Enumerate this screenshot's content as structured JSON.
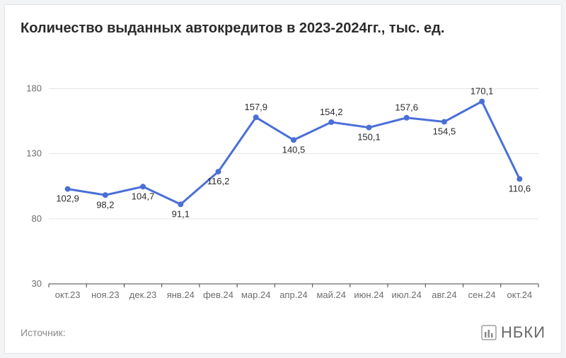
{
  "title": "Количество выданных автокредитов в 2023-2024гг., тыс. ед.",
  "chart": {
    "type": "line",
    "categories": [
      "окт.23",
      "ноя.23",
      "дек.23",
      "янв.24",
      "фев.24",
      "мар.24",
      "апр.24",
      "май.24",
      "июн.24",
      "июл.24",
      "авг.24",
      "сен.24",
      "окт.24"
    ],
    "values": [
      102.9,
      98.2,
      104.7,
      91.1,
      116.2,
      157.9,
      140.5,
      154.2,
      150.1,
      157.6,
      154.5,
      170.1,
      110.6
    ],
    "value_labels": [
      "102,9",
      "98,2",
      "104,7",
      "91,1",
      "116,2",
      "157,9",
      "140,5",
      "154,2",
      "150,1",
      "157,6",
      "154,5",
      "170,1",
      "110,6"
    ],
    "label_positions": [
      "below",
      "below",
      "below",
      "below",
      "below",
      "above",
      "below",
      "above",
      "below",
      "above",
      "below",
      "above",
      "below"
    ],
    "ylim": [
      30,
      190
    ],
    "yticks": [
      30,
      80,
      130,
      180
    ],
    "line_color": "#4a6fd6",
    "line_width": 3,
    "marker_radius": 4,
    "background_color": "#ffffff",
    "grid_color": "#e5e5e5",
    "axis_color": "#444444",
    "tick_label_color": "#6d6d6d",
    "tick_label_fontsize": 13,
    "point_label_color": "#2b2b2b",
    "point_label_fontsize": 13,
    "title_fontsize": 20,
    "title_weight": "700"
  },
  "footer": {
    "source_label": "Источник:",
    "logo_text": "НБКИ"
  }
}
